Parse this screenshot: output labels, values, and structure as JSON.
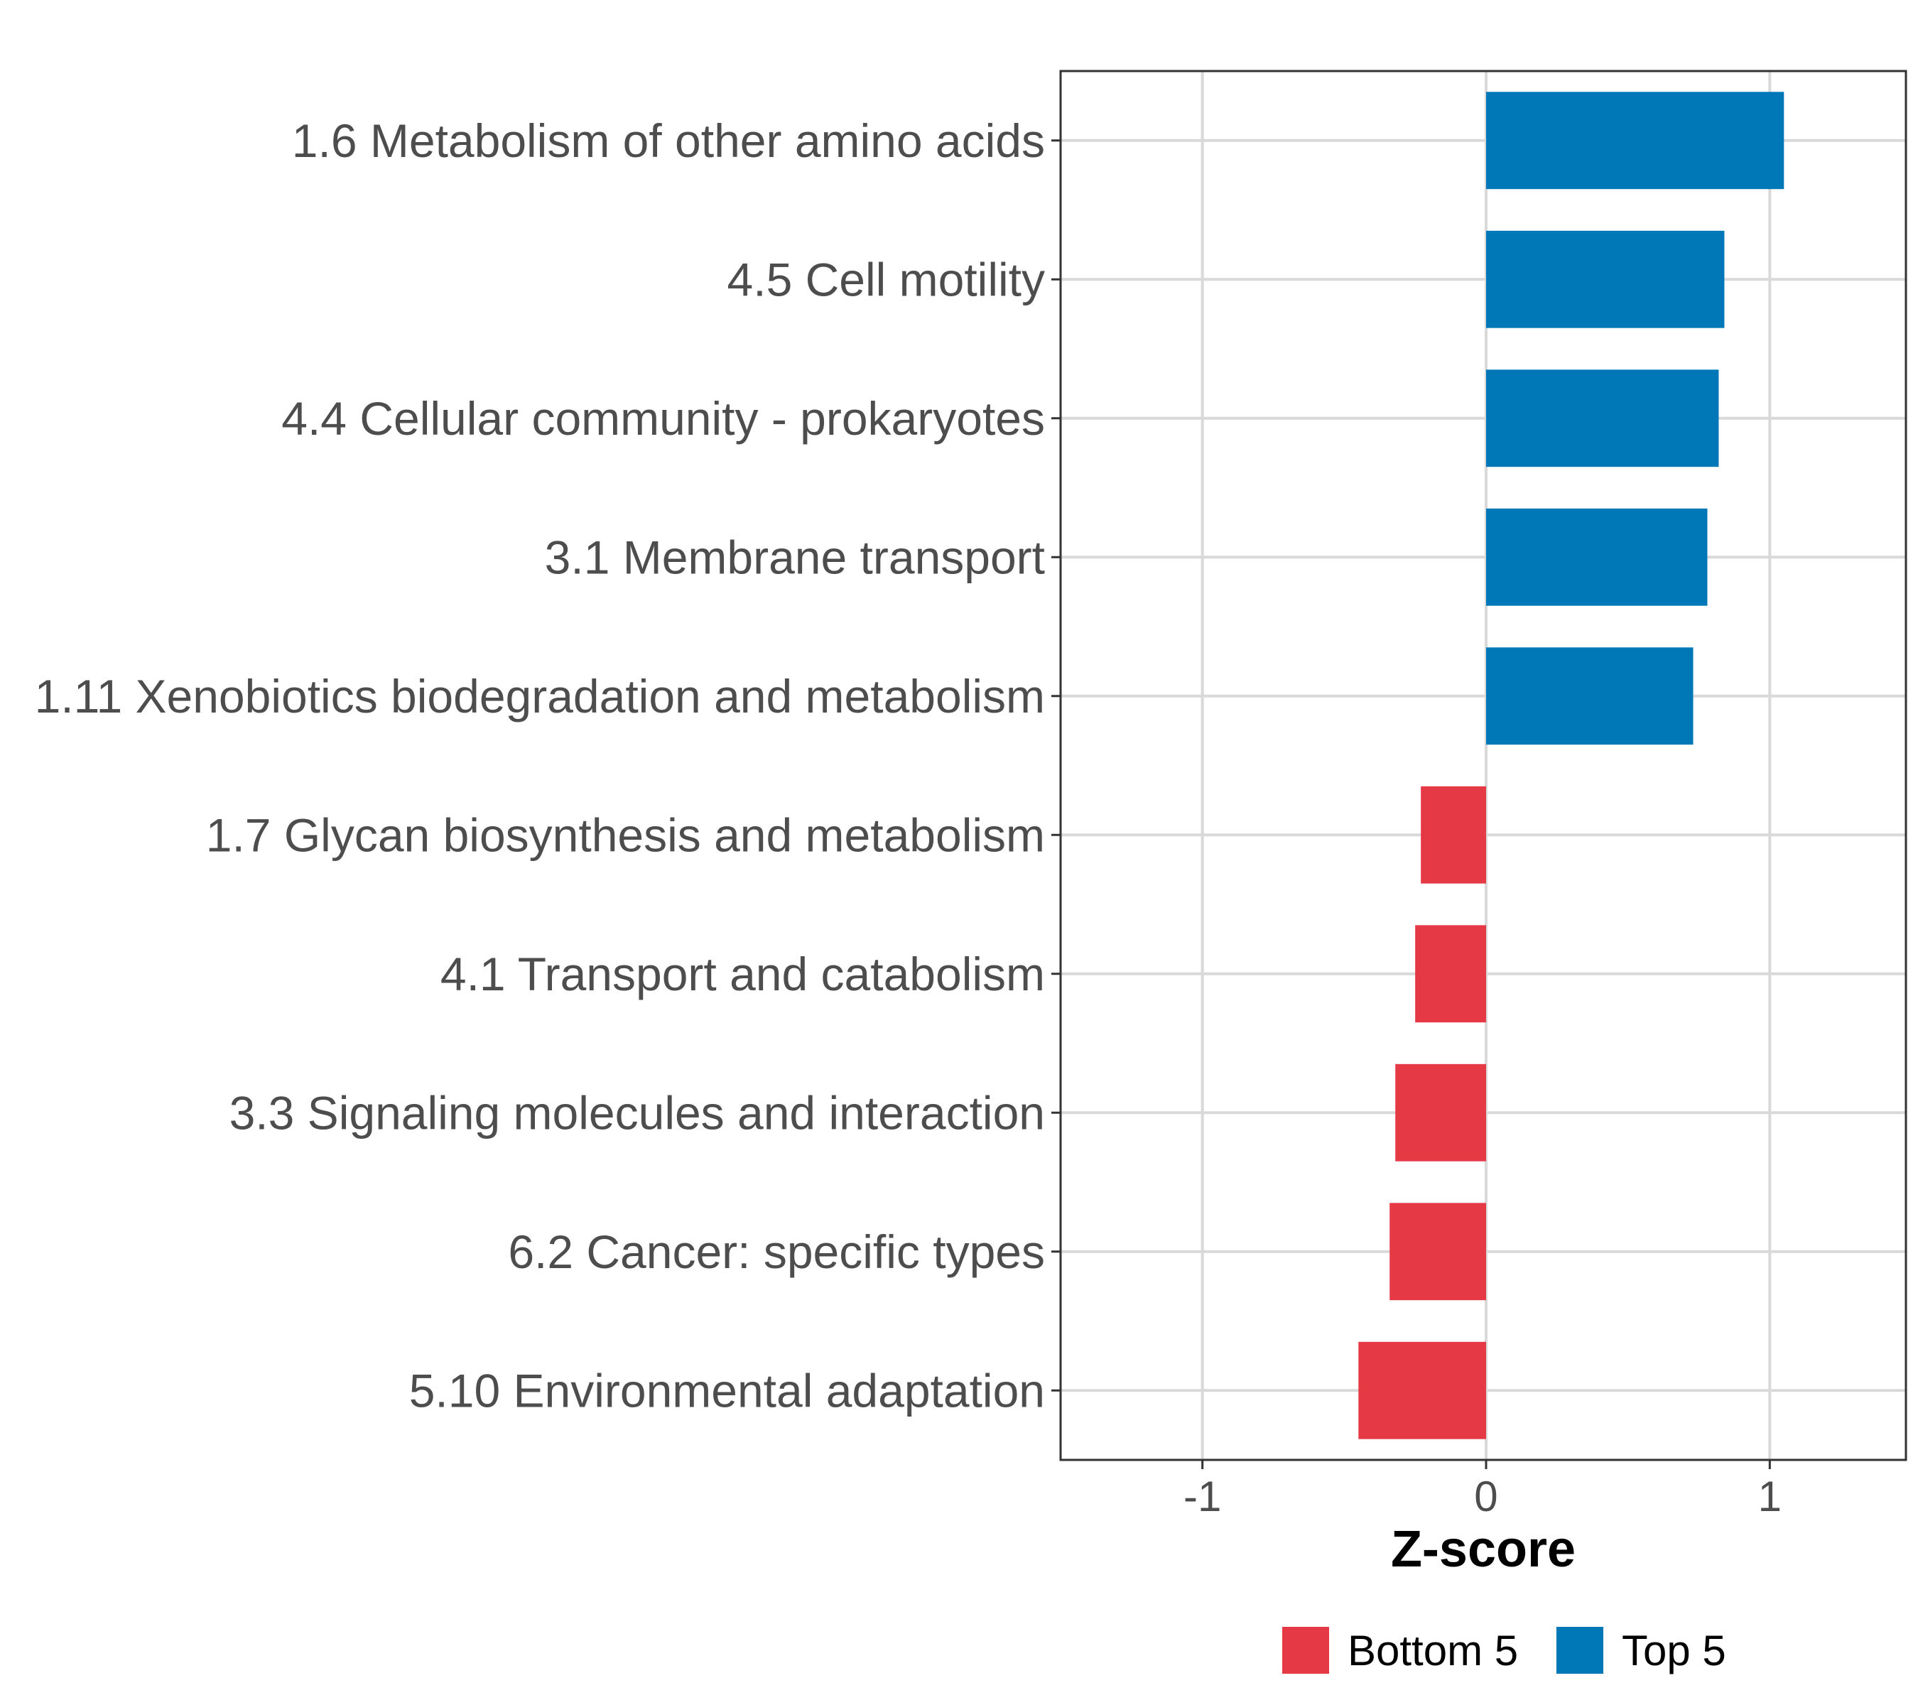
{
  "chart_data": {
    "type": "bar",
    "orientation": "horizontal",
    "categories": [
      "1.6 Metabolism of other amino acids",
      "4.5 Cell motility",
      "4.4 Cellular community - prokaryotes",
      "3.1 Membrane transport",
      "1.11 Xenobiotics biodegradation and metabolism",
      "1.7 Glycan biosynthesis and metabolism",
      "4.1 Transport and catabolism",
      "3.3 Signaling molecules and interaction",
      "6.2 Cancer: specific types",
      "5.10 Environmental adaptation"
    ],
    "values": [
      1.05,
      0.84,
      0.82,
      0.78,
      0.73,
      -0.23,
      -0.25,
      -0.32,
      -0.34,
      -0.45
    ],
    "groups": [
      "Top 5",
      "Top 5",
      "Top 5",
      "Top 5",
      "Top 5",
      "Bottom 5",
      "Bottom 5",
      "Bottom 5",
      "Bottom 5",
      "Bottom 5"
    ],
    "xlabel": "Z-score",
    "ylabel": "",
    "xlim": [
      -1.5,
      1.48
    ],
    "xticks": [
      -1,
      0,
      1
    ],
    "xtick_labels": [
      "-1",
      "0",
      "1"
    ],
    "grid": true,
    "legend": {
      "position": "bottom",
      "entries": [
        {
          "label": "Bottom 5",
          "color": "#E63946"
        },
        {
          "label": "Top 5",
          "color": "#0077B6"
        }
      ]
    }
  }
}
